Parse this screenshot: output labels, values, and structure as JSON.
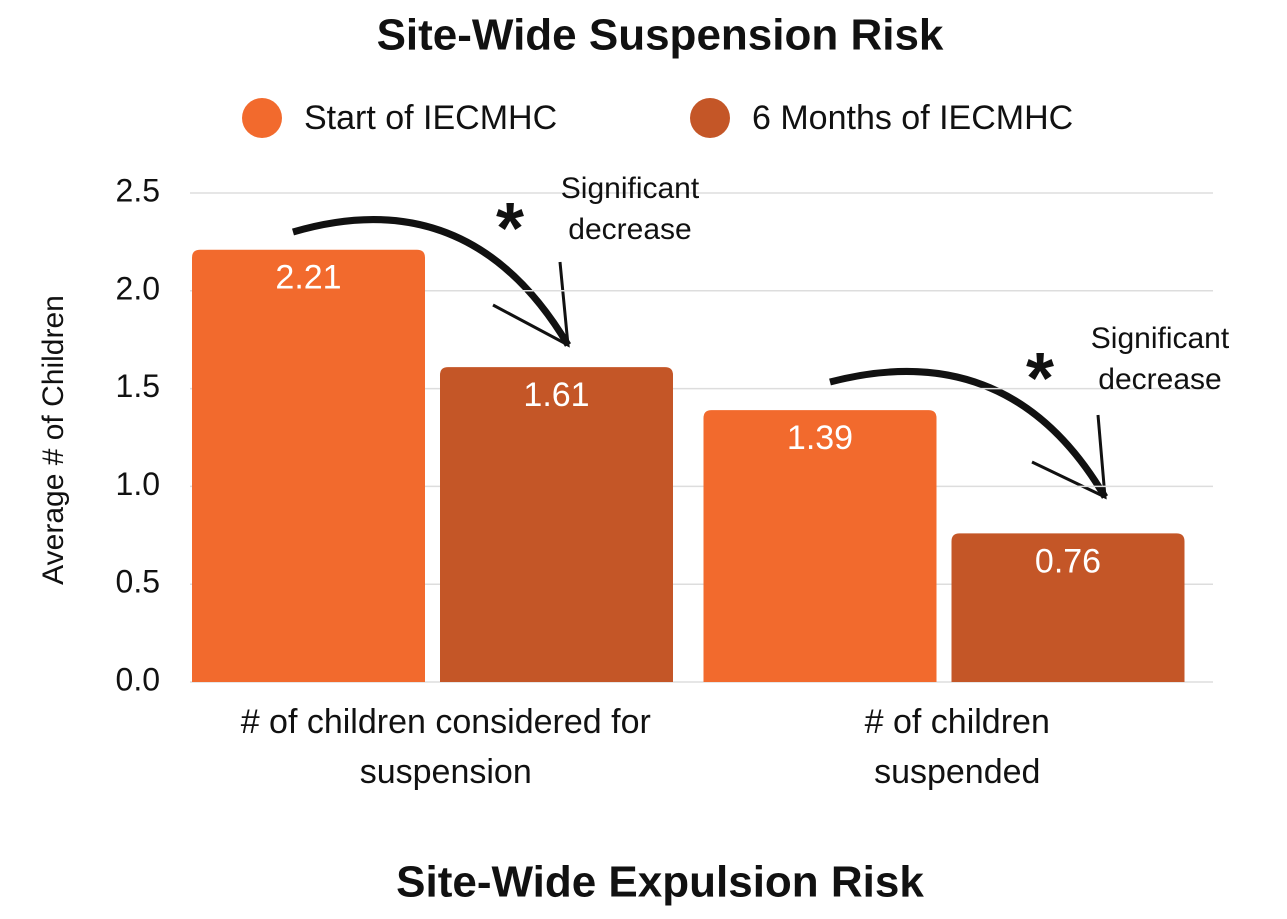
{
  "chart_data": {
    "type": "bar",
    "title": "Site-Wide Suspension Risk",
    "categories": [
      "# of children considered for suspension",
      "# of children suspended"
    ],
    "series": [
      {
        "name": "Start of IECMHC",
        "color": "#f26a2d",
        "values": [
          2.21,
          1.39
        ]
      },
      {
        "name": "6 Months of IECMHC",
        "color": "#c45627",
        "values": [
          1.61,
          0.76
        ]
      }
    ],
    "y_label": "Average # of Children",
    "ylim": [
      0,
      2.5
    ],
    "yticks": [
      {
        "value": 0,
        "label": "0.0"
      },
      0.5,
      {
        "value": 1,
        "label": "1.0"
      },
      1.5,
      {
        "value": 2,
        "label": "2.0"
      },
      2.5
    ],
    "grid": true,
    "legend": "top",
    "annotations": [
      {
        "marker": "*",
        "text": "Significant decrease"
      },
      {
        "marker": "*",
        "text": "Significant decrease"
      }
    ]
  },
  "next_section": {
    "title": "Site-Wide Expulsion Risk"
  }
}
